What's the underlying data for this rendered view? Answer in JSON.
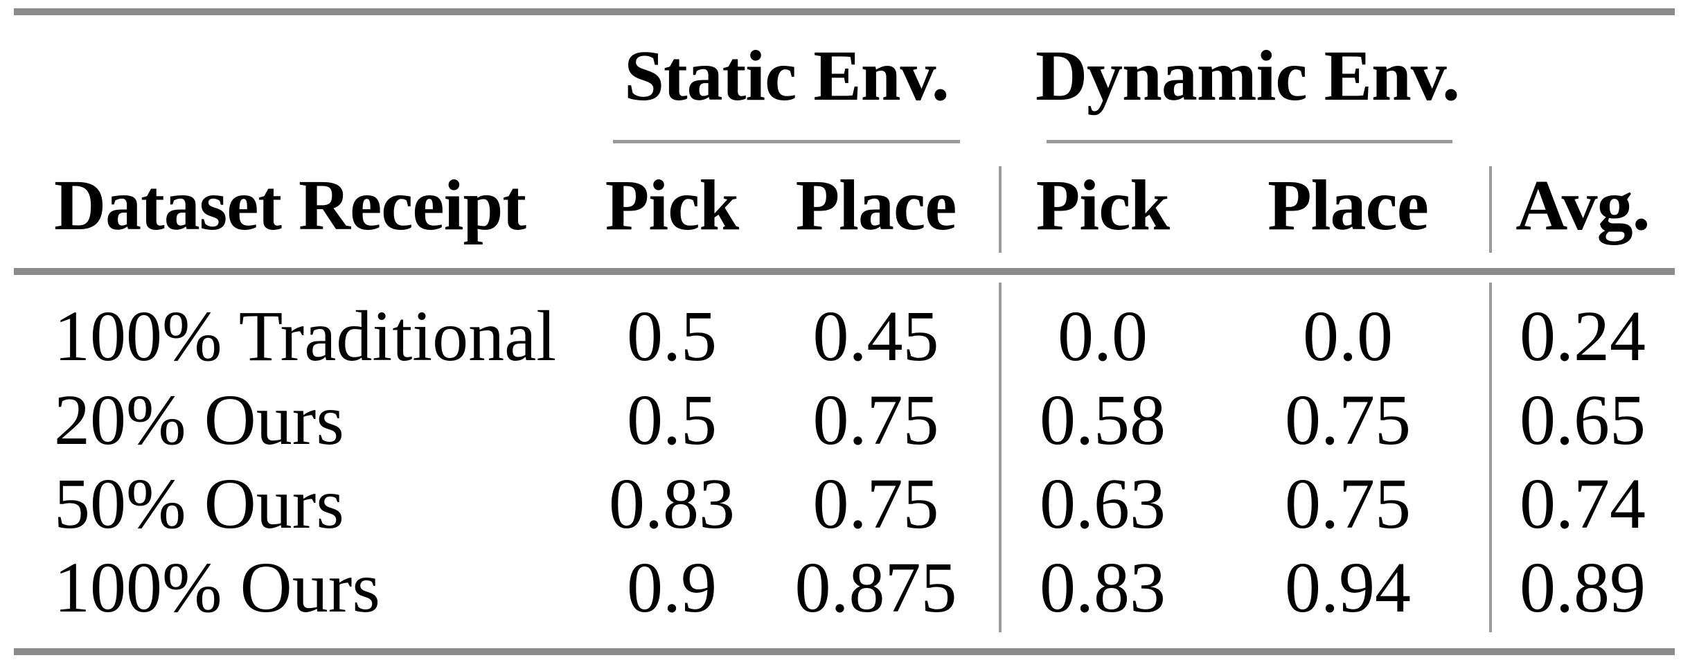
{
  "table": {
    "groups": [
      {
        "label": "Static Env."
      },
      {
        "label": "Dynamic Env."
      }
    ],
    "header": {
      "row_label": "Dataset Receipt",
      "static_pick": "Pick",
      "static_place": "Place",
      "dynamic_pick": "Pick",
      "dynamic_place": "Place",
      "avg": "Avg."
    },
    "rows": [
      {
        "label": "100% Traditional",
        "static_pick": "0.5",
        "static_place": "0.45",
        "dynamic_pick": "0.0",
        "dynamic_place": "0.0",
        "avg": "0.24"
      },
      {
        "label": "20% Ours",
        "static_pick": "0.5",
        "static_place": "0.75",
        "dynamic_pick": "0.58",
        "dynamic_place": "0.75",
        "avg": "0.65"
      },
      {
        "label": "50% Ours",
        "static_pick": "0.83",
        "static_place": "0.75",
        "dynamic_pick": "0.63",
        "dynamic_place": "0.75",
        "avg": "0.74"
      },
      {
        "label": "100% Ours",
        "static_pick": "0.9",
        "static_place": "0.875",
        "dynamic_pick": "0.83",
        "dynamic_place": "0.94",
        "avg": "0.89"
      }
    ]
  },
  "colors": {
    "text": "#000000",
    "background": "#ffffff",
    "thick_rule": "#8b8b8b",
    "thin_rule": "#9a9a9a"
  },
  "chart_data": {
    "type": "table",
    "title": "",
    "column_groups": [
      "Static Env.",
      "Dynamic Env."
    ],
    "columns": [
      "Dataset Receipt",
      "Static Pick",
      "Static Place",
      "Dynamic Pick",
      "Dynamic Place",
      "Avg."
    ],
    "rows": [
      [
        "100% Traditional",
        0.5,
        0.45,
        0.0,
        0.0,
        0.24
      ],
      [
        "20% Ours",
        0.5,
        0.75,
        0.58,
        0.75,
        0.65
      ],
      [
        "50% Ours",
        0.83,
        0.75,
        0.63,
        0.75,
        0.74
      ],
      [
        "100% Ours",
        0.9,
        0.875,
        0.83,
        0.94,
        0.89
      ]
    ]
  }
}
